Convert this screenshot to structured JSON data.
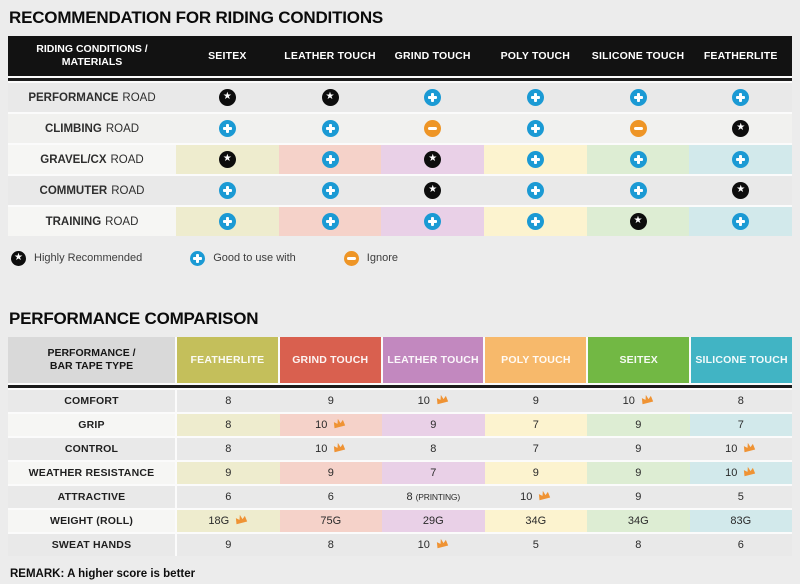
{
  "colors": {
    "page_bg": "#ececec",
    "header_black": "#121212",
    "row_gray": "#e9e9e9",
    "row_light": "#f1f1ef",
    "label_light": "#f6f6f4",
    "corner2_bg": "#d9d9d9",
    "accent_blue": "#1b9ad4",
    "accent_orange": "#ee9526",
    "badge_black": "#0d0d0d",
    "crown_orange": "#ef9334",
    "tints": [
      "#eeecce",
      "#f5d2c9",
      "#e9d0e7",
      "#fcf3cf",
      "#ddedd3",
      "#d2e9eb"
    ]
  },
  "chart_data": [
    {
      "type": "table",
      "title": "RECOMMENDATION FOR RIDING CONDITIONS",
      "corner_line1": "RIDING CONDITIONS /",
      "corner_line2": "MATERIALS",
      "columns": [
        "SEITEX",
        "LEATHER TOUCH",
        "GRIND TOUCH",
        "POLY TOUCH",
        "SILICONE TOUCH",
        "FEATHERLITE"
      ],
      "icon_legend": [
        {
          "icon": "star",
          "label": "Highly Recommended"
        },
        {
          "icon": "plus",
          "label": "Good to use with"
        },
        {
          "icon": "minus",
          "label": "Ignore"
        }
      ],
      "rows": [
        {
          "label": "PERFORMANCE",
          "suffix": "ROAD",
          "tinted": false,
          "shade": "gray",
          "cells": [
            "star",
            "star",
            "plus",
            "plus",
            "plus",
            "plus"
          ]
        },
        {
          "label": "CLIMBING",
          "suffix": "ROAD",
          "tinted": false,
          "shade": "light",
          "cells": [
            "plus",
            "plus",
            "minus",
            "plus",
            "minus",
            "star"
          ]
        },
        {
          "label": "GRAVEL/CX",
          "suffix": "ROAD",
          "tinted": true,
          "cells": [
            "star",
            "plus",
            "star",
            "plus",
            "plus",
            "plus"
          ]
        },
        {
          "label": "COMMUTER",
          "suffix": "ROAD",
          "tinted": false,
          "shade": "gray",
          "cells": [
            "plus",
            "plus",
            "star",
            "plus",
            "plus",
            "star"
          ]
        },
        {
          "label": "TRAINING",
          "suffix": "ROAD",
          "tinted": true,
          "cells": [
            "plus",
            "plus",
            "plus",
            "plus",
            "star",
            "plus"
          ]
        }
      ]
    },
    {
      "type": "table",
      "title": "PERFORMANCE COMPARISON",
      "corner_line1": "PERFORMANCE /",
      "corner_line2": "BAR TAPE TYPE",
      "columns": [
        {
          "label": "FEATHERLITE",
          "color": "#c4bf5b"
        },
        {
          "label": "GRIND TOUCH",
          "color": "#d9604f"
        },
        {
          "label": "LEATHER TOUCH",
          "color": "#c288bf"
        },
        {
          "label": "POLY TOUCH",
          "color": "#f7b96b"
        },
        {
          "label": "SEITEX",
          "color": "#72b844"
        },
        {
          "label": "SILICONE TOUCH",
          "color": "#41b4c4"
        }
      ],
      "rows": [
        {
          "label": "COMFORT",
          "tinted": false,
          "cells": [
            {
              "v": "8"
            },
            {
              "v": "9"
            },
            {
              "v": "10",
              "crown": true
            },
            {
              "v": "9"
            },
            {
              "v": "10",
              "crown": true
            },
            {
              "v": "8"
            }
          ]
        },
        {
          "label": "GRIP",
          "tinted": true,
          "cells": [
            {
              "v": "8"
            },
            {
              "v": "10",
              "crown": true
            },
            {
              "v": "9"
            },
            {
              "v": "7"
            },
            {
              "v": "9"
            },
            {
              "v": "7"
            }
          ]
        },
        {
          "label": "CONTROL",
          "tinted": false,
          "cells": [
            {
              "v": "8"
            },
            {
              "v": "10",
              "crown": true
            },
            {
              "v": "8"
            },
            {
              "v": "7"
            },
            {
              "v": "9"
            },
            {
              "v": "10",
              "crown": true
            }
          ]
        },
        {
          "label": "WEATHER RESISTANCE",
          "tinted": true,
          "cells": [
            {
              "v": "9"
            },
            {
              "v": "9"
            },
            {
              "v": "7"
            },
            {
              "v": "9"
            },
            {
              "v": "9"
            },
            {
              "v": "10",
              "crown": true
            }
          ]
        },
        {
          "label": "ATTRACTIVE",
          "tinted": false,
          "cells": [
            {
              "v": "6"
            },
            {
              "v": "6"
            },
            {
              "v": "8",
              "note": "(PRINTING)"
            },
            {
              "v": "10",
              "crown": true
            },
            {
              "v": "9"
            },
            {
              "v": "5"
            }
          ]
        },
        {
          "label": "WEIGHT (ROLL)",
          "tinted": true,
          "cells": [
            {
              "v": "18G",
              "crown": true
            },
            {
              "v": "75G"
            },
            {
              "v": "29G"
            },
            {
              "v": "34G"
            },
            {
              "v": "34G"
            },
            {
              "v": "83G"
            }
          ]
        },
        {
          "label": "SWEAT HANDS",
          "tinted": false,
          "cells": [
            {
              "v": "9"
            },
            {
              "v": "8"
            },
            {
              "v": "10",
              "crown": true
            },
            {
              "v": "5"
            },
            {
              "v": "8"
            },
            {
              "v": "6"
            }
          ]
        }
      ],
      "remark": "REMARK: A higher score is better"
    }
  ]
}
